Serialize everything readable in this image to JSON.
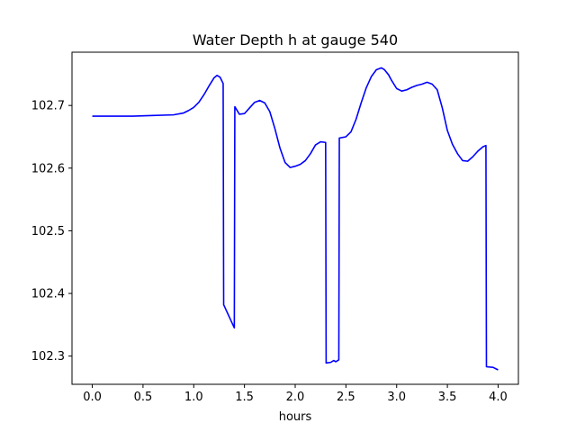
{
  "chart_data": {
    "type": "line",
    "title": "Water Depth h at gauge 540",
    "xlabel": "hours",
    "ylabel": "",
    "xlim": [
      -0.2,
      4.2
    ],
    "ylim": [
      102.255,
      102.785
    ],
    "x_ticks": [
      0.0,
      0.5,
      1.0,
      1.5,
      2.0,
      2.5,
      3.0,
      3.5,
      4.0
    ],
    "x_tick_labels": [
      "0.0",
      "0.5",
      "1.0",
      "1.5",
      "2.0",
      "2.5",
      "3.0",
      "3.5",
      "4.0"
    ],
    "y_ticks": [
      102.3,
      102.4,
      102.5,
      102.6,
      102.7
    ],
    "y_tick_labels": [
      "102.3",
      "102.4",
      "102.5",
      "102.6",
      "102.7"
    ],
    "grid": false,
    "series": [
      {
        "color": "#0000ff",
        "x": [
          0.0,
          0.2,
          0.4,
          0.6,
          0.8,
          0.9,
          0.95,
          1.0,
          1.05,
          1.1,
          1.15,
          1.2,
          1.23,
          1.26,
          1.29,
          1.295,
          1.4,
          1.405,
          1.45,
          1.5,
          1.55,
          1.6,
          1.65,
          1.7,
          1.75,
          1.8,
          1.85,
          1.9,
          1.95,
          2.0,
          2.05,
          2.1,
          2.15,
          2.2,
          2.25,
          2.3,
          2.305,
          2.35,
          2.38,
          2.4,
          2.43,
          2.435,
          2.5,
          2.55,
          2.6,
          2.65,
          2.7,
          2.75,
          2.8,
          2.85,
          2.88,
          2.92,
          2.95,
          3.0,
          3.05,
          3.1,
          3.15,
          3.2,
          3.25,
          3.3,
          3.35,
          3.4,
          3.45,
          3.5,
          3.55,
          3.6,
          3.65,
          3.7,
          3.75,
          3.8,
          3.85,
          3.88,
          3.885,
          3.95,
          4.0
        ],
        "y": [
          102.683,
          102.683,
          102.683,
          102.684,
          102.685,
          102.688,
          102.692,
          102.697,
          102.705,
          102.717,
          102.731,
          102.744,
          102.748,
          102.745,
          102.735,
          102.382,
          102.345,
          102.698,
          102.686,
          102.687,
          102.696,
          102.705,
          102.708,
          102.704,
          102.69,
          102.663,
          102.632,
          102.609,
          102.601,
          102.603,
          102.606,
          102.612,
          102.623,
          102.637,
          102.642,
          102.641,
          102.289,
          102.29,
          102.293,
          102.291,
          102.294,
          102.648,
          102.65,
          102.658,
          102.678,
          102.704,
          102.728,
          102.746,
          102.757,
          102.76,
          102.757,
          102.749,
          102.74,
          102.727,
          102.723,
          102.725,
          102.729,
          102.732,
          102.734,
          102.737,
          102.734,
          102.725,
          102.696,
          102.66,
          102.638,
          102.623,
          102.612,
          102.611,
          102.618,
          102.627,
          102.634,
          102.636,
          102.283,
          102.282,
          102.278
        ]
      }
    ]
  }
}
